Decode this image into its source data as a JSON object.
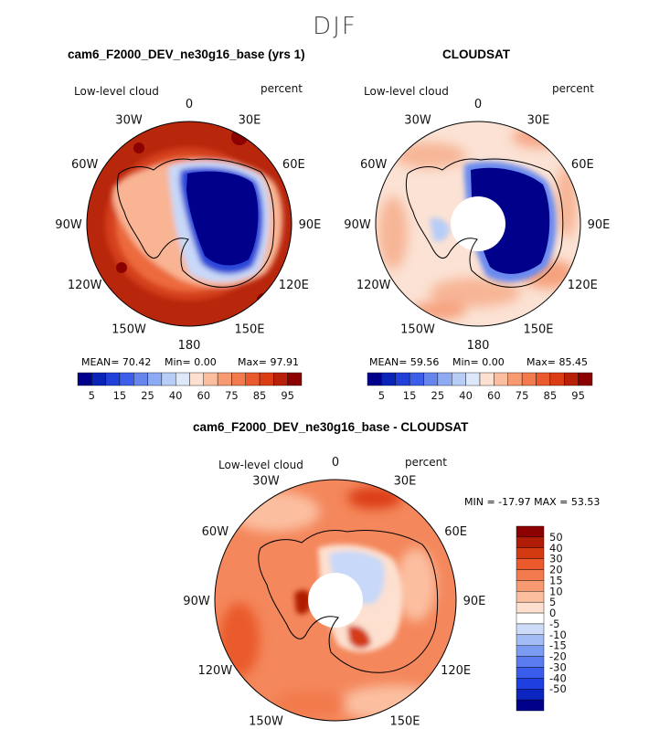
{
  "page": {
    "suptitle": "DJF"
  },
  "panels": [
    {
      "id": "model",
      "title": "cam6_F2000_DEV_ne30g16_base (yrs 1)",
      "left_label": "Low-level cloud",
      "right_label": "percent",
      "stats": {
        "mean": "MEAN=   70.42",
        "min": "Min=    0.00",
        "max": "Max=   97.91"
      }
    },
    {
      "id": "obs",
      "title": "CLOUDSAT",
      "left_label": "Low-level cloud",
      "right_label": "percent",
      "stats": {
        "mean": "MEAN=   59.56",
        "min": "Min=    0.00",
        "max": "Max=   85.45"
      }
    },
    {
      "id": "diff",
      "title": "cam6_F2000_DEV_ne30g16_base - CLOUDSAT",
      "left_label": "Low-level cloud",
      "right_label": "percent",
      "minmax": "MIN = -17.97 MAX =  53.53"
    }
  ],
  "longitude_labels": [
    "0",
    "30E",
    "60E",
    "90E",
    "120E",
    "150E",
    "180",
    "150W",
    "120W",
    "90W",
    "60W",
    "30W"
  ],
  "colorbar_abs": {
    "colors": [
      "#00008b",
      "#0a24b8",
      "#2040d8",
      "#3d5ee8",
      "#6686ee",
      "#8eaaf2",
      "#b8cdf6",
      "#dde8fa",
      "#fde0cf",
      "#fbbfa0",
      "#f79a72",
      "#f27a4c",
      "#ea5a2c",
      "#dc3c14",
      "#b8200a",
      "#8b0000"
    ],
    "labels": [
      "5",
      "15",
      "25",
      "40",
      "60",
      "75",
      "85",
      "95"
    ]
  },
  "colorbar_diff": {
    "colors": [
      "#00008b",
      "#0c24c0",
      "#1f3fe0",
      "#3a5cec",
      "#5a7cf0",
      "#7b9cf2",
      "#a4bcf5",
      "#cfdcf9",
      "#ffffff",
      "#fde0cf",
      "#fbbfa0",
      "#f79a72",
      "#f27a4c",
      "#ea5a2c",
      "#d43a12",
      "#b01c06",
      "#8b0000"
    ],
    "labels": [
      "50",
      "40",
      "30",
      "20",
      "15",
      "10",
      "5",
      "0",
      "-5",
      "-10",
      "-15",
      "-20",
      "-30",
      "-40",
      "-50"
    ]
  },
  "chart_data": [
    {
      "type": "heatmap",
      "title": "cam6_F2000_DEV_ne30g16_base (yrs 1)",
      "variable": "Low-level cloud",
      "units": "percent",
      "projection": "south polar stereographic",
      "mean": 70.42,
      "min": 0.0,
      "max": 97.91,
      "contour_levels": [
        5,
        10,
        15,
        20,
        25,
        30,
        40,
        50,
        60,
        70,
        75,
        80,
        85,
        90,
        95
      ]
    },
    {
      "type": "heatmap",
      "title": "CLOUDSAT",
      "variable": "Low-level cloud",
      "units": "percent",
      "projection": "south polar stereographic",
      "mean": 59.56,
      "min": 0.0,
      "max": 85.45,
      "contour_levels": [
        5,
        10,
        15,
        20,
        25,
        30,
        40,
        50,
        60,
        70,
        75,
        80,
        85,
        90,
        95
      ]
    },
    {
      "type": "heatmap",
      "title": "cam6_F2000_DEV_ne30g16_base - CLOUDSAT",
      "variable": "Low-level cloud",
      "units": "percent",
      "projection": "south polar stereographic",
      "min": -17.97,
      "max": 53.53,
      "contour_levels": [
        -50,
        -40,
        -30,
        -20,
        -15,
        -10,
        -5,
        0,
        5,
        10,
        15,
        20,
        30,
        40,
        50
      ]
    }
  ]
}
